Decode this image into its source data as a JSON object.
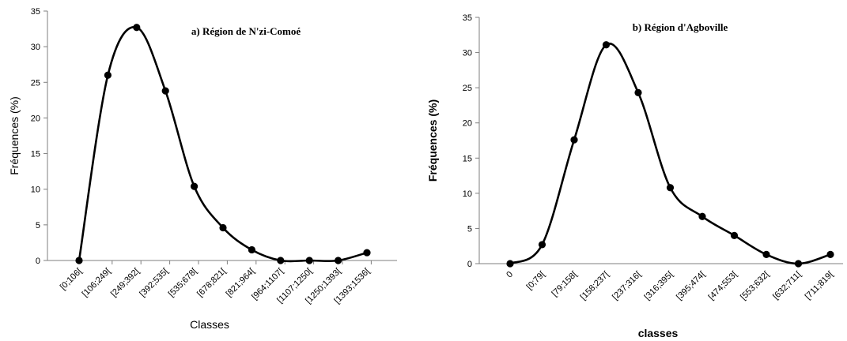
{
  "chart_data": [
    {
      "type": "line",
      "title": "a) Région de N'zi-Comoé",
      "xlabel": "Classes",
      "ylabel": "Fréquences (%)",
      "ylim": [
        0,
        35
      ],
      "yticks": [
        0,
        5,
        10,
        15,
        20,
        25,
        30,
        35
      ],
      "categories": [
        "[0;106[",
        "[106;249[",
        "[249;392[",
        "[392;535[",
        "[535;678[",
        "[678;821[",
        "[821;964[",
        "[964;1107[",
        "[1107;1250[",
        "[1250;1393[",
        "[1393;1536["
      ],
      "values": [
        0,
        26,
        32.7,
        23.8,
        10.4,
        4.6,
        1.5,
        0,
        0,
        0,
        1.1
      ],
      "line_color": "#000000",
      "grid": false
    },
    {
      "type": "line",
      "title": "b) Région d'Agboville",
      "xlabel": "classes",
      "ylabel": "Fréquences (%)",
      "ylim": [
        0,
        35
      ],
      "yticks": [
        0,
        5,
        10,
        15,
        20,
        25,
        30,
        35
      ],
      "categories": [
        "0",
        "[0;79[",
        "[79;158[",
        "[158;237[",
        "[237;316[",
        "[316;395[",
        "[395;474[",
        "[474;553[",
        "[553;632[",
        "[632;711[",
        "[711;819["
      ],
      "values": [
        0,
        2.7,
        17.6,
        31.1,
        24.3,
        10.8,
        6.7,
        4.0,
        1.3,
        0,
        1.3
      ],
      "line_color": "#000000",
      "grid": false
    }
  ]
}
